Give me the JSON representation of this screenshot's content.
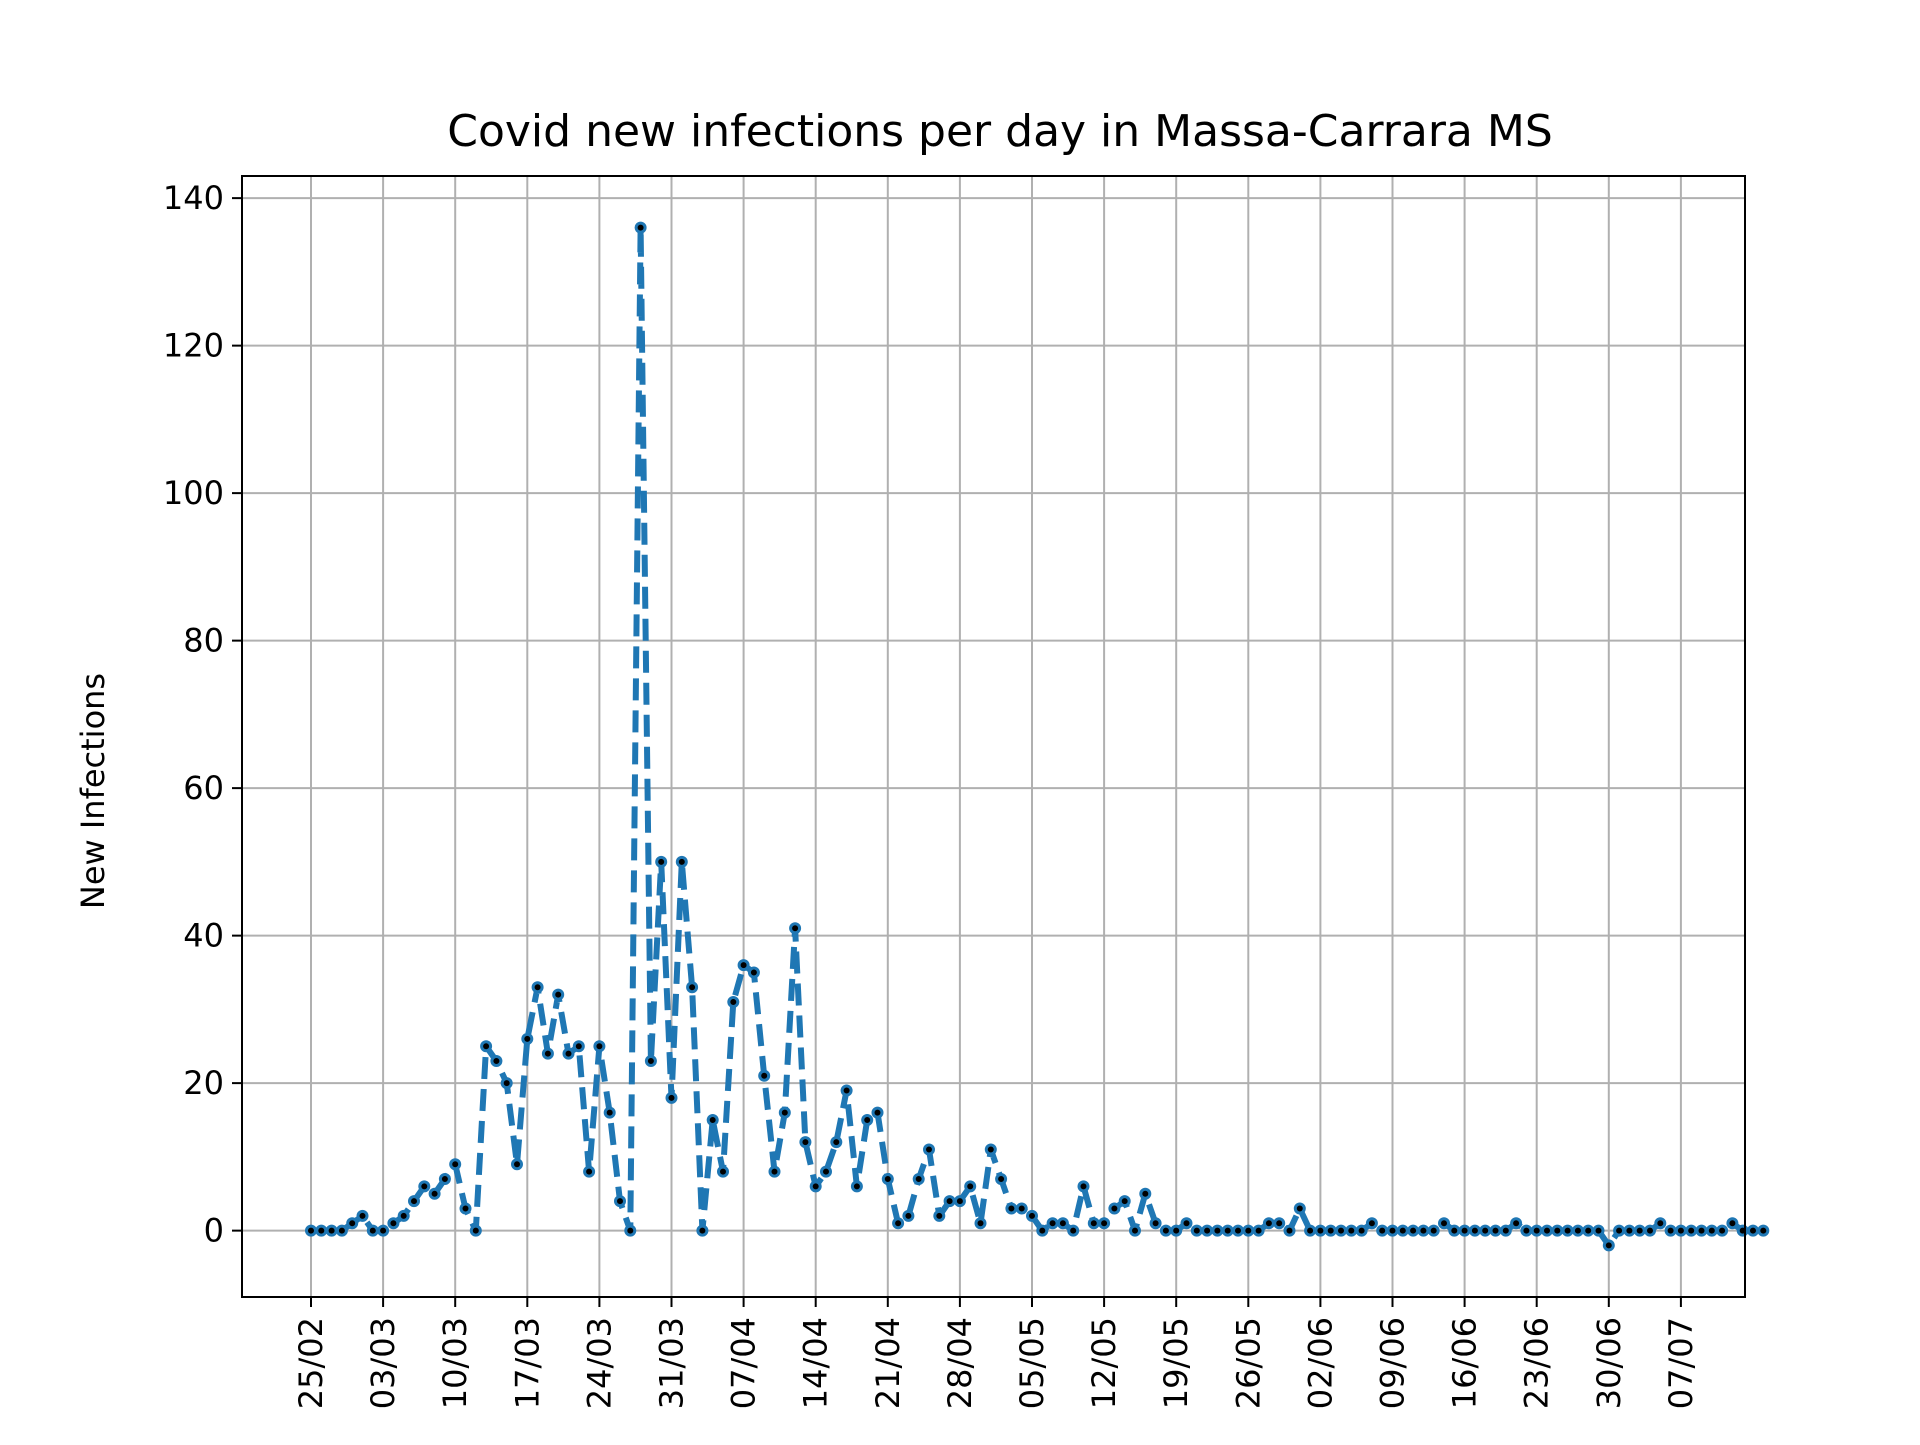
{
  "chart_data": {
    "type": "line",
    "title": "Covid new infections per day in Massa-Carrara MS",
    "xlabel": "",
    "ylabel": "New Infections",
    "ylim": [
      -9,
      143
    ],
    "yticks": [
      0,
      20,
      40,
      60,
      80,
      100,
      120,
      140
    ],
    "xtick_labels": [
      "25/02",
      "03/03",
      "10/03",
      "17/03",
      "24/03",
      "31/03",
      "07/04",
      "14/04",
      "21/04",
      "28/04",
      "05/05",
      "12/05",
      "19/05",
      "26/05",
      "02/06",
      "09/06",
      "16/06",
      "23/06",
      "30/06",
      "07/07"
    ],
    "grid": true,
    "legend": "none",
    "line_color": "#1f77b4",
    "marker_color": "#000000",
    "line_style": "dashed",
    "x_start": "25/02",
    "x_end": "07/07",
    "values": [
      0,
      0,
      0,
      0,
      1,
      2,
      0,
      0,
      1,
      2,
      4,
      6,
      5,
      7,
      9,
      3,
      0,
      25,
      23,
      20,
      9,
      26,
      33,
      24,
      32,
      24,
      25,
      8,
      25,
      16,
      4,
      0,
      136,
      23,
      50,
      18,
      50,
      33,
      0,
      15,
      8,
      31,
      36,
      35,
      21,
      8,
      16,
      41,
      12,
      6,
      8,
      12,
      19,
      6,
      15,
      16,
      7,
      1,
      2,
      7,
      11,
      2,
      4,
      4,
      6,
      1,
      11,
      7,
      3,
      3,
      2,
      0,
      1,
      1,
      0,
      6,
      1,
      1,
      3,
      4,
      0,
      5,
      1,
      0,
      0,
      1,
      0,
      0,
      0,
      0,
      0,
      0,
      0,
      1,
      1,
      0,
      3,
      0,
      0,
      0,
      0,
      0,
      0,
      1,
      0,
      0,
      0,
      0,
      0,
      0,
      1,
      0,
      0,
      0,
      0,
      0,
      0,
      1,
      0,
      0,
      0,
      0,
      0,
      0,
      0,
      0,
      -2,
      0,
      0,
      0,
      0,
      1,
      0,
      0,
      0,
      0,
      0,
      0,
      1,
      0,
      0,
      0
    ]
  }
}
